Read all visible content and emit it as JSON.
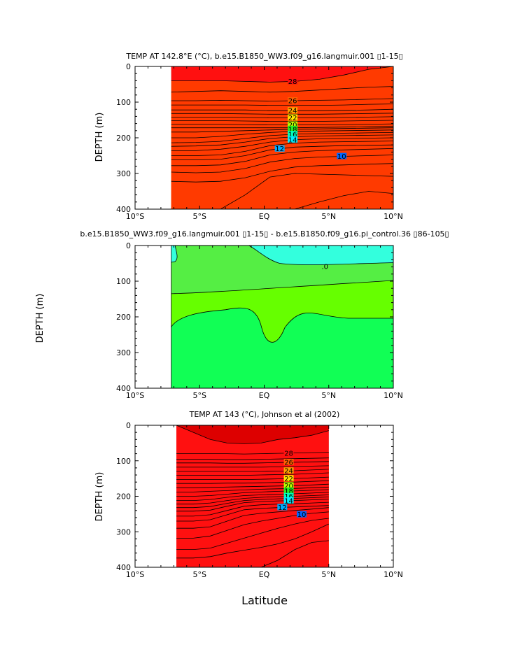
{
  "figure": {
    "xlabel": "Latitude"
  },
  "panels": [
    {
      "id": "p1",
      "title": "TEMP AT 142.8°E (°C), b.e15.B1850_WW3.f09_g16.langmuir.001  ▯1-15▯",
      "ylabel": "DEPTH (m)",
      "data_x_range": [
        -7.2,
        10
      ],
      "isotherms": [
        {
          "value": 28,
          "label": "28",
          "depth": [
            40,
            40,
            40,
            42,
            44,
            42,
            36,
            24,
            8,
            0
          ],
          "label_lat": 2.2
        },
        {
          "value": 27,
          "label": "",
          "depth": [
            72,
            70,
            68,
            70,
            72,
            70,
            66,
            62,
            58,
            56
          ]
        },
        {
          "value": 26,
          "label": "26",
          "depth": [
            96,
            96,
            95,
            96,
            97,
            96,
            95,
            94,
            92,
            90
          ],
          "label_lat": 2.2
        },
        {
          "value": 25,
          "label": "",
          "depth": [
            108,
            108,
            108,
            108,
            109,
            109,
            109,
            108,
            106,
            105
          ]
        },
        {
          "value": 24,
          "label": "24",
          "depth": [
            122,
            122,
            122,
            122,
            124,
            124,
            124,
            123,
            122,
            120
          ],
          "label_lat": 2.2
        },
        {
          "value": 23,
          "label": "",
          "depth": [
            132,
            132,
            132,
            133,
            134,
            134,
            134,
            133,
            132,
            131
          ]
        },
        {
          "value": 22,
          "label": "22",
          "depth": [
            142,
            142,
            142,
            143,
            144,
            144,
            144,
            143,
            142,
            141
          ],
          "label_lat": 2.2
        },
        {
          "value": 21,
          "label": "",
          "depth": [
            152,
            152,
            152,
            153,
            154,
            154,
            154,
            153,
            152,
            151
          ]
        },
        {
          "value": 20,
          "label": "20",
          "depth": [
            162,
            162,
            162,
            163,
            164,
            164,
            164,
            163,
            162,
            161
          ],
          "label_lat": 2.2
        },
        {
          "value": 19,
          "label": "",
          "depth": [
            172,
            172,
            172,
            172,
            172,
            172,
            171,
            170,
            169,
            168
          ]
        },
        {
          "value": 18,
          "label": "18",
          "depth": [
            184,
            184,
            182,
            180,
            178,
            176,
            175,
            174,
            173,
            172
          ],
          "label_lat": 2.2
        },
        {
          "value": 17,
          "label": "",
          "depth": [
            200,
            200,
            196,
            190,
            185,
            182,
            181,
            180,
            179,
            178
          ]
        },
        {
          "value": 16,
          "label": "16",
          "depth": [
            214,
            213,
            210,
            202,
            194,
            190,
            188,
            187,
            186,
            185
          ],
          "label_lat": 2.2
        },
        {
          "value": 15,
          "label": "",
          "depth": [
            224,
            223,
            220,
            212,
            202,
            197,
            195,
            194,
            193,
            192
          ]
        },
        {
          "value": 14,
          "label": "14",
          "depth": [
            236,
            236,
            232,
            224,
            212,
            205,
            203,
            202,
            201,
            200
          ],
          "label_lat": 2.2
        },
        {
          "value": 13,
          "label": "",
          "depth": [
            250,
            250,
            248,
            238,
            222,
            215,
            212,
            211,
            210,
            209
          ]
        },
        {
          "value": 12,
          "label": "12",
          "depth": [
            262,
            262,
            260,
            250,
            234,
            226,
            224,
            222,
            221,
            220
          ],
          "label_lat": 1.2
        },
        {
          "value": 11,
          "label": "",
          "depth": [
            278,
            278,
            276,
            266,
            248,
            240,
            236,
            234,
            232,
            230
          ]
        },
        {
          "value": 10,
          "label": "10",
          "depth": [
            296,
            298,
            296,
            286,
            268,
            258,
            254,
            252,
            250,
            248
          ],
          "label_lat": 6.0
        },
        {
          "value": 9,
          "label": "",
          "depth": [
            322,
            324,
            322,
            312,
            294,
            282,
            278,
            276,
            274,
            272
          ]
        },
        {
          "value": 8,
          "label": "",
          "depth": [
            400,
            400,
            400,
            360,
            310,
            300,
            302,
            304,
            306,
            308
          ]
        },
        {
          "value": 7,
          "label": "",
          "depth": [
            400,
            400,
            400,
            400,
            400,
            400,
            380,
            362,
            350,
            356
          ]
        }
      ]
    },
    {
      "id": "p2",
      "title": "b.e15.B1850_WW3.f09_g16.langmuir.001  ▯1-15▯ - b.e15.B1850.f09_g16.pi_control.36  ▯86-105▯",
      "ylabel": "DEPTH (m)",
      "data_x_range": [
        -7.2,
        10
      ],
      "contour_labels": [
        {
          "text": ".0",
          "lat": 4.7,
          "depth": 58
        }
      ],
      "regions": {
        "top_cyan_right": "#33ffdd",
        "upper_green": "#55ee44",
        "mid_yellowgreen": "#66ff00",
        "lower_green": "#11ff55",
        "left_strip_cyan": "#33ffdd"
      }
    },
    {
      "id": "p3",
      "title": "TEMP AT 143 (°C), Johnson et al (2002)",
      "ylabel": "DEPTH (m)",
      "data_x_range": [
        -6.8,
        5
      ],
      "isotherms": [
        {
          "value": 29,
          "label": "",
          "depth": [
            0,
            20,
            40,
            50,
            52,
            50,
            40,
            35,
            28,
            15
          ]
        },
        {
          "value": 28,
          "label": "28",
          "depth": [
            80,
            80,
            80,
            80,
            81,
            80,
            79,
            78,
            77,
            76
          ],
          "label_lat": 1.9
        },
        {
          "value": 27,
          "label": "",
          "depth": [
            96,
            96,
            96,
            97,
            97,
            96,
            95,
            94,
            93,
            92
          ]
        },
        {
          "value": 26,
          "label": "26",
          "depth": [
            106,
            106,
            106,
            107,
            107,
            106,
            105,
            104,
            103,
            102
          ],
          "label_lat": 1.9
        },
        {
          "value": 25,
          "label": "",
          "depth": [
            118,
            118,
            118,
            118,
            118,
            118,
            117,
            116,
            115,
            114
          ]
        },
        {
          "value": 24,
          "label": "24",
          "depth": [
            130,
            130,
            130,
            130,
            130,
            130,
            129,
            128,
            126,
            124
          ],
          "label_lat": 1.9
        },
        {
          "value": 23,
          "label": "",
          "depth": [
            141,
            141,
            141,
            141,
            141,
            140,
            139,
            138,
            136,
            134
          ]
        },
        {
          "value": 22,
          "label": "22",
          "depth": [
            153,
            153,
            153,
            153,
            153,
            152,
            151,
            150,
            148,
            146
          ],
          "label_lat": 1.9
        },
        {
          "value": 21,
          "label": "",
          "depth": [
            164,
            164,
            164,
            163,
            163,
            162,
            161,
            160,
            158,
            156
          ]
        },
        {
          "value": 20,
          "label": "20",
          "depth": [
            176,
            176,
            175,
            174,
            173,
            172,
            171,
            170,
            168,
            166
          ],
          "label_lat": 1.9
        },
        {
          "value": 19,
          "label": "",
          "depth": [
            188,
            188,
            186,
            184,
            182,
            180,
            179,
            178,
            176,
            174
          ]
        },
        {
          "value": 18,
          "label": "18",
          "depth": [
            200,
            200,
            198,
            194,
            190,
            188,
            186,
            185,
            183,
            181
          ],
          "label_lat": 1.9
        },
        {
          "value": 17,
          "label": "",
          "depth": [
            212,
            212,
            209,
            203,
            198,
            196,
            194,
            193,
            191,
            189
          ]
        },
        {
          "value": 16,
          "label": "16",
          "depth": [
            222,
            222,
            219,
            212,
            206,
            203,
            201,
            200,
            198,
            196
          ],
          "label_lat": 1.9
        },
        {
          "value": 15,
          "label": "",
          "depth": [
            232,
            232,
            229,
            220,
            212,
            209,
            207,
            206,
            204,
            202
          ]
        },
        {
          "value": 14,
          "label": "14",
          "depth": [
            242,
            242,
            239,
            228,
            218,
            215,
            213,
            212,
            210,
            208
          ],
          "label_lat": 1.9
        },
        {
          "value": 13,
          "label": "",
          "depth": [
            256,
            256,
            252,
            240,
            228,
            224,
            222,
            221,
            219,
            217
          ]
        },
        {
          "value": 12,
          "label": "12",
          "depth": [
            270,
            270,
            266,
            252,
            238,
            234,
            232,
            230,
            228,
            226
          ],
          "label_lat": 1.4
        },
        {
          "value": 11,
          "label": "",
          "depth": [
            290,
            290,
            286,
            270,
            254,
            248,
            244,
            240,
            236,
            232
          ]
        },
        {
          "value": 10,
          "label": "10",
          "depth": [
            318,
            318,
            312,
            296,
            280,
            270,
            262,
            254,
            248,
            244
          ],
          "label_lat": 2.9
        },
        {
          "value": 9,
          "label": "",
          "depth": [
            350,
            350,
            346,
            332,
            318,
            304,
            290,
            278,
            268,
            262
          ]
        },
        {
          "value": 8,
          "label": "",
          "depth": [
            374,
            374,
            370,
            360,
            352,
            344,
            334,
            320,
            300,
            278
          ]
        },
        {
          "value": 7,
          "label": "",
          "depth": [
            400,
            400,
            400,
            400,
            400,
            400,
            380,
            350,
            330,
            325
          ]
        }
      ]
    }
  ],
  "chart_data": {
    "type": "heatmap",
    "x_axis": {
      "range": [
        -10,
        10
      ],
      "ticks": [
        -10,
        -5,
        0,
        5,
        10
      ],
      "tick_labels": [
        "10°S",
        "5°S",
        "EQ",
        "5°N",
        "10°N"
      ]
    },
    "y_axis": {
      "range": [
        0,
        400
      ],
      "reversed": true,
      "ticks": [
        0,
        100,
        200,
        300,
        400
      ],
      "tick_labels": [
        "0",
        "100",
        "200",
        "300",
        "400"
      ]
    },
    "xlabel": "Latitude",
    "ylabel": "DEPTH (m)",
    "contour_interval_degC": 1,
    "color_scale": {
      "29": "#dd0000",
      "28": "#ff1010",
      "27": "#ff3a00",
      "26": "#ff5e00",
      "25": "#ff8200",
      "24": "#ffa200",
      "23": "#ffc400",
      "22": "#ffe300",
      "21": "#eeff00",
      "20": "#bbff00",
      "19": "#77ff00",
      "18": "#22ee22",
      "17": "#00ee77",
      "16": "#00ffbb",
      "15": "#00ffee",
      "14": "#00eeff",
      "13": "#00ccff",
      "12": "#00aaff",
      "11": "#0088ff",
      "10": "#0066ff",
      "9": "#0044ee",
      "8": "#0022dd",
      "7": "#5511ee"
    },
    "panels": [
      "p1",
      "p2",
      "p3"
    ]
  }
}
